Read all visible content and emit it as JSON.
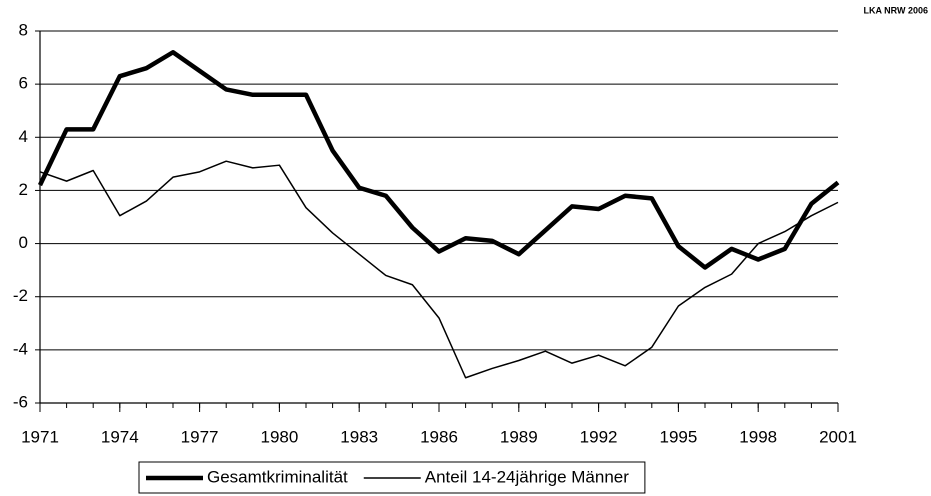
{
  "chart_data": {
    "type": "line",
    "annotation": "LKA NRW 2006",
    "x": [
      1971,
      1972,
      1973,
      1974,
      1975,
      1976,
      1977,
      1978,
      1979,
      1980,
      1981,
      1982,
      1983,
      1984,
      1985,
      1986,
      1987,
      1988,
      1989,
      1990,
      1991,
      1992,
      1993,
      1994,
      1995,
      1996,
      1997,
      1998,
      1999,
      2000,
      2001
    ],
    "series": [
      {
        "name": "Gesamtkriminalität",
        "color": "#000000",
        "line_width": 4.5,
        "values": [
          2.2,
          4.3,
          4.3,
          6.3,
          6.6,
          7.2,
          6.5,
          5.8,
          5.6,
          5.6,
          5.6,
          3.5,
          2.1,
          1.8,
          0.6,
          -0.3,
          0.2,
          0.1,
          -0.4,
          0.5,
          1.4,
          1.3,
          1.8,
          1.7,
          -0.1,
          -0.9,
          -0.2,
          -0.6,
          -0.2,
          1.5,
          2.3
        ]
      },
      {
        "name": "Anteil 14-24jährige Männer",
        "color": "#000000",
        "line_width": 1.5,
        "values": [
          2.7,
          2.35,
          2.75,
          1.05,
          1.6,
          2.5,
          2.7,
          3.1,
          2.85,
          2.95,
          1.35,
          0.4,
          -0.4,
          -1.2,
          -1.55,
          -2.8,
          -5.05,
          -4.7,
          -4.4,
          -4.05,
          -4.5,
          -4.2,
          -4.6,
          -3.9,
          -2.35,
          -1.65,
          -1.15,
          0.0,
          0.45,
          1.05,
          1.55
        ]
      }
    ],
    "xlim": [
      1971,
      2001
    ],
    "xticks": [
      1971,
      1974,
      1977,
      1980,
      1983,
      1986,
      1989,
      1992,
      1995,
      1998,
      2001
    ],
    "ylim": [
      -6,
      8
    ],
    "yticks": [
      -6,
      -4,
      -2,
      0,
      2,
      4,
      6,
      8
    ],
    "grid": true,
    "legend": "bottom"
  }
}
